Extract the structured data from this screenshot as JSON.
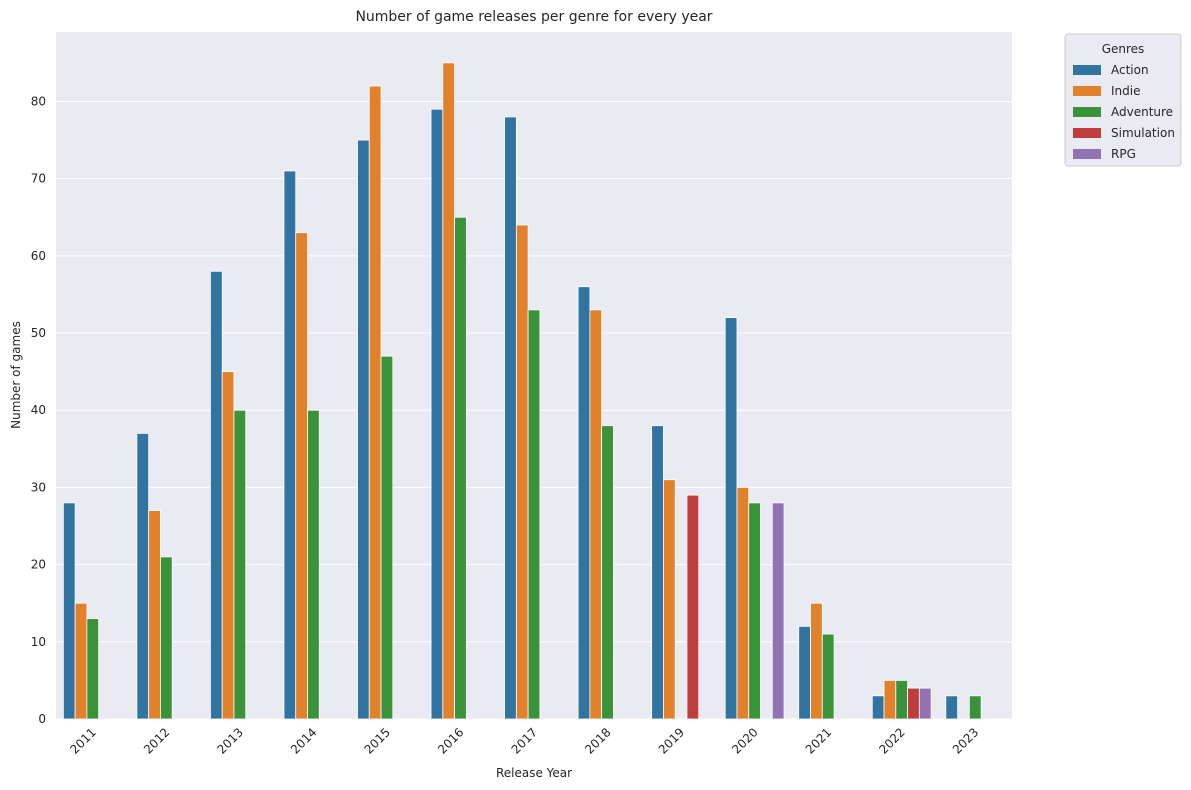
{
  "chart_data": {
    "type": "bar",
    "title": "Number of game releases per genre for every year",
    "xlabel": "Release Year",
    "ylabel": "Number of games",
    "ylim": [
      0,
      89
    ],
    "yticks": [
      0,
      10,
      20,
      30,
      40,
      50,
      60,
      70,
      80
    ],
    "grid": true,
    "legend_title": "Genres",
    "legend_position": "outside top-right",
    "categories": [
      "2011",
      "2012",
      "2013",
      "2014",
      "2015",
      "2016",
      "2017",
      "2018",
      "2019",
      "2020",
      "2021",
      "2022",
      "2023"
    ],
    "series": [
      {
        "name": "Action",
        "color": "#3274a1",
        "values": [
          28,
          37,
          58,
          71,
          75,
          79,
          78,
          56,
          38,
          52,
          12,
          3,
          3
        ]
      },
      {
        "name": "Indie",
        "color": "#e1812c",
        "values": [
          15,
          27,
          45,
          63,
          82,
          85,
          64,
          53,
          31,
          30,
          15,
          5,
          null
        ]
      },
      {
        "name": "Adventure",
        "color": "#3a923a",
        "values": [
          13,
          21,
          40,
          40,
          47,
          65,
          53,
          38,
          null,
          28,
          11,
          5,
          3
        ]
      },
      {
        "name": "Simulation",
        "color": "#c03d3e",
        "values": [
          null,
          null,
          null,
          null,
          null,
          null,
          null,
          null,
          29,
          null,
          null,
          4,
          null
        ]
      },
      {
        "name": "RPG",
        "color": "#9372b2",
        "values": [
          null,
          null,
          null,
          null,
          null,
          null,
          null,
          null,
          null,
          28,
          null,
          4,
          null
        ]
      }
    ]
  },
  "colors": {
    "plot_background": "#eaeaf2",
    "grid": "#ffffff",
    "text": "#262626"
  }
}
